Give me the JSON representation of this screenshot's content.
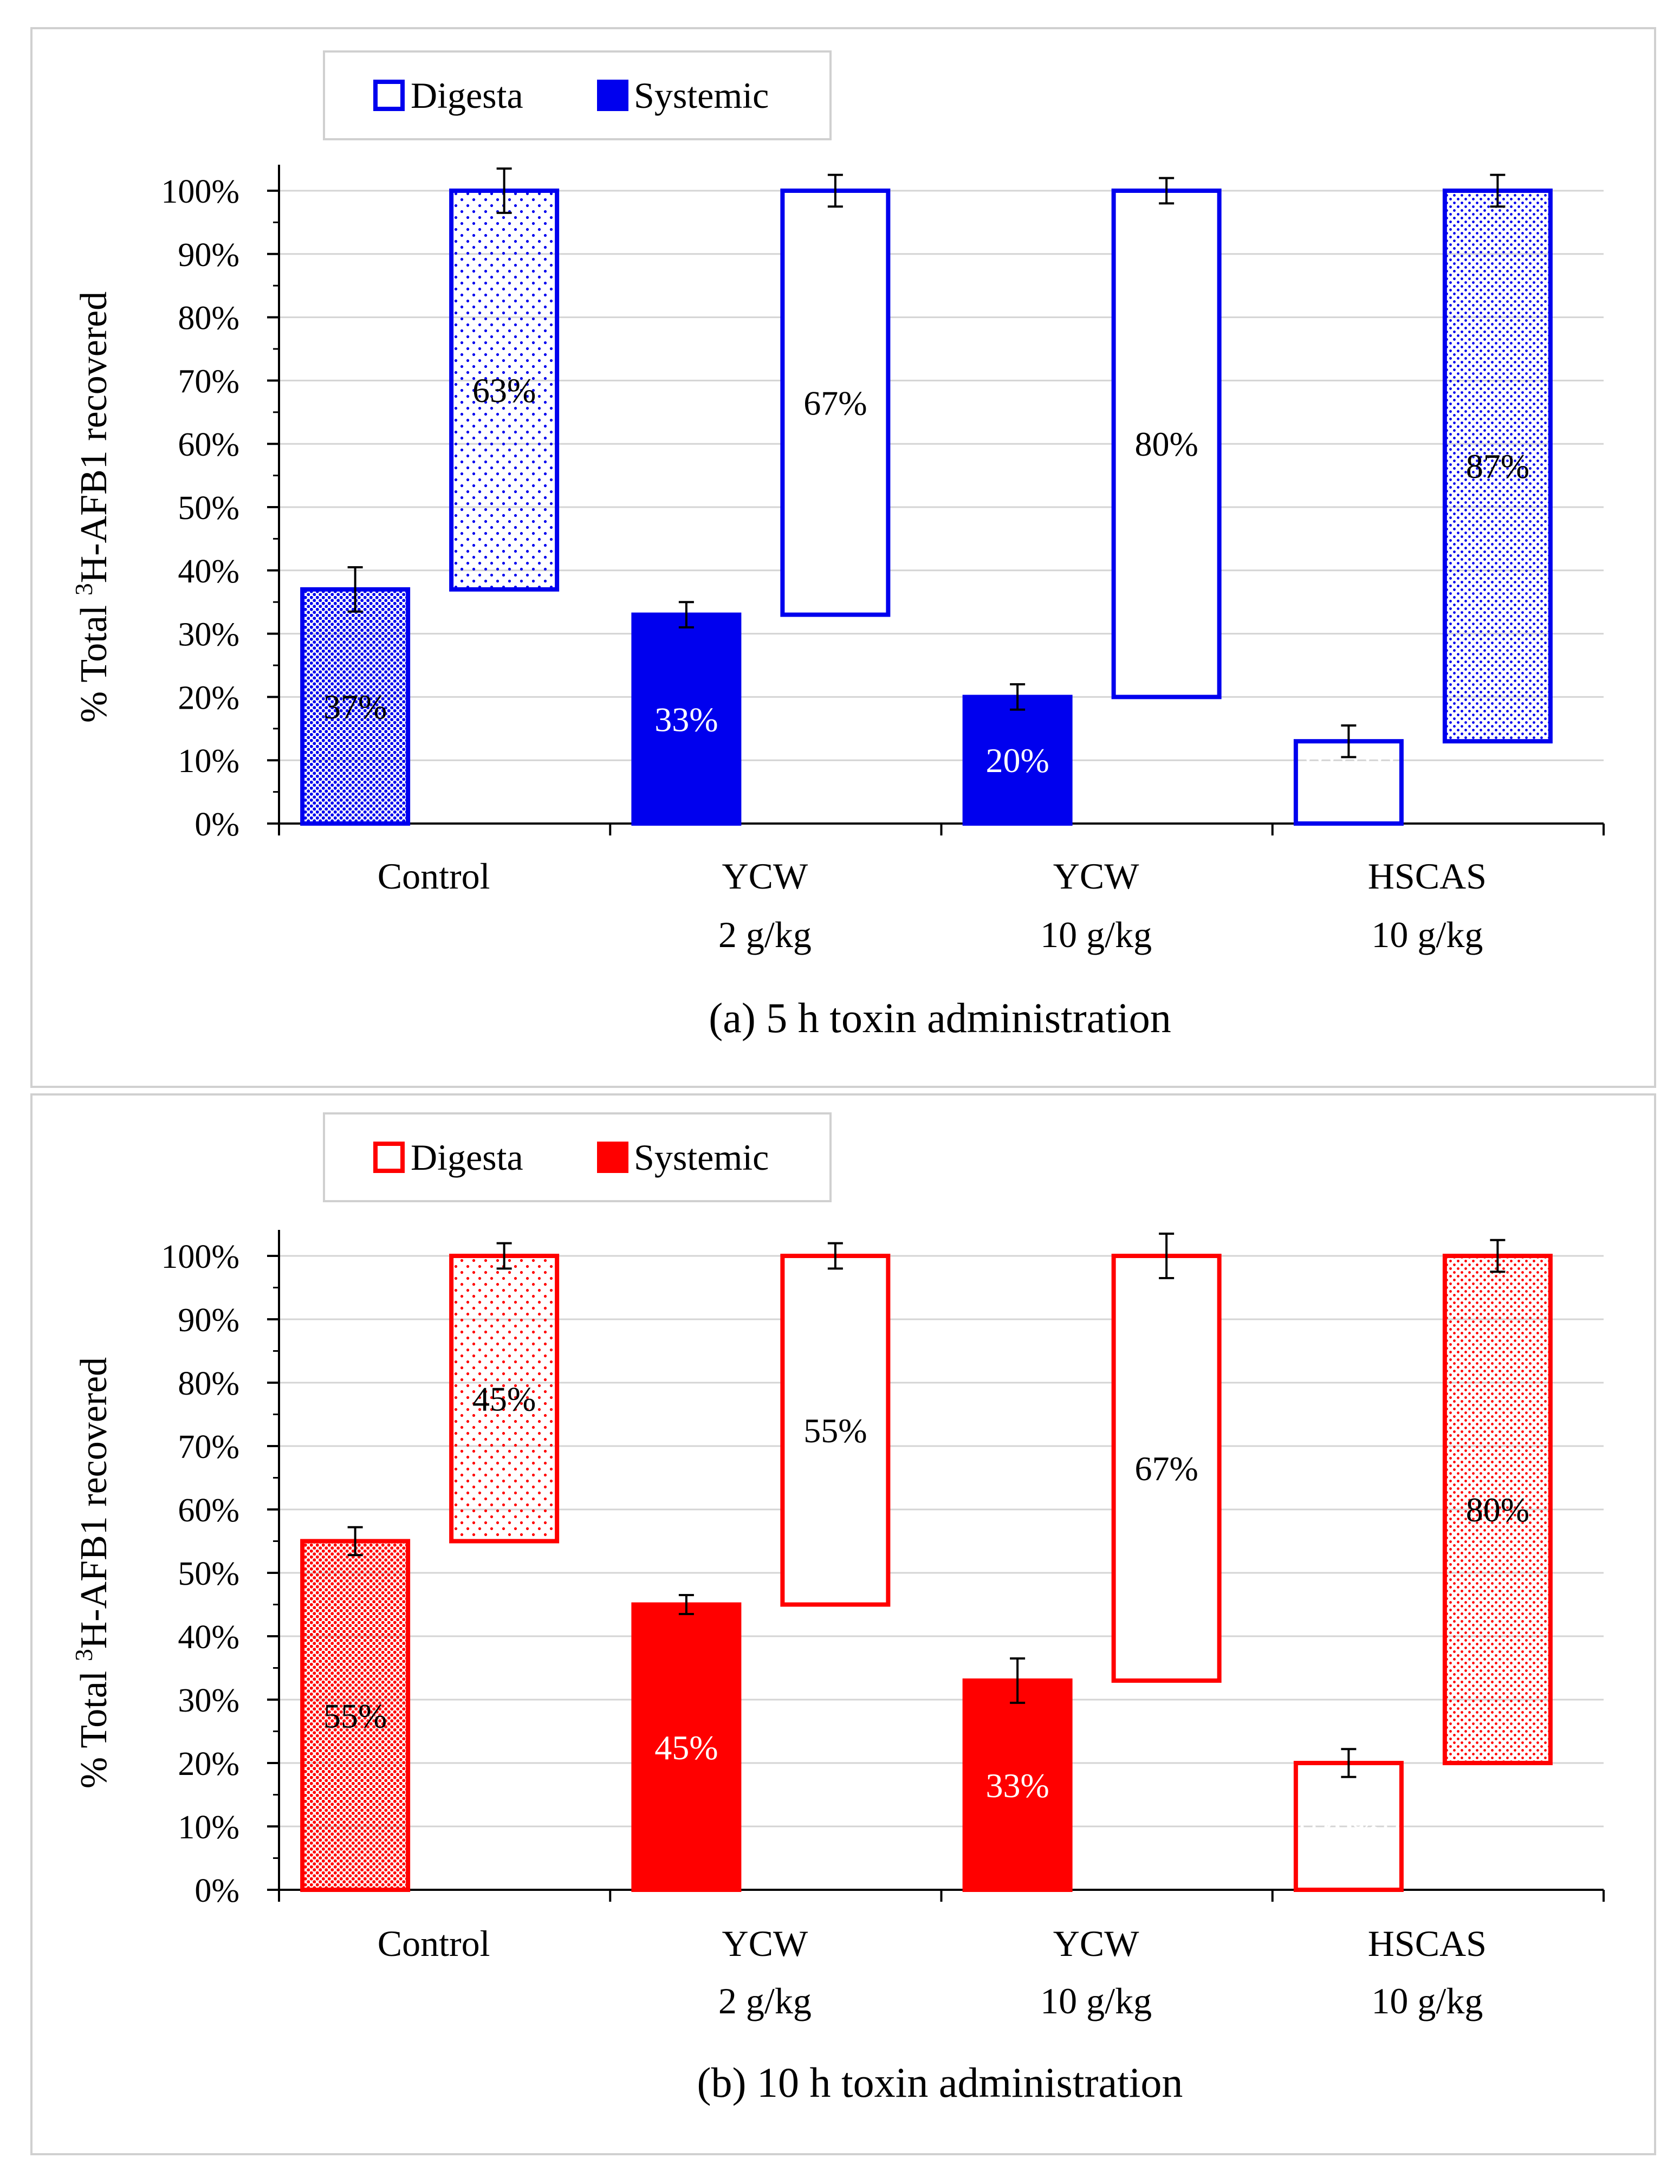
{
  "y_axis_label": {
    "prefix": "% Total ",
    "superscript": "3",
    "suffix": "H-AFB1 recovered"
  },
  "tick_format_suffix": "%",
  "chart_data": [
    {
      "type": "bar",
      "stacking": "floating-waterfall",
      "title": "(a) 5 h toxin administration",
      "categories": [
        [
          "Control"
        ],
        [
          "YCW",
          "2 g/kg"
        ],
        [
          "YCW",
          "10 g/kg"
        ],
        [
          "HSCAS",
          "10 g/kg"
        ]
      ],
      "ylim": [
        0,
        100
      ],
      "yticks": [
        0,
        10,
        20,
        30,
        40,
        50,
        60,
        70,
        80,
        90,
        100
      ],
      "grid": true,
      "legend_position": "top-left",
      "accent_color": "#0000ee",
      "series": [
        {
          "name": "Systemic",
          "role": "systemic",
          "values": [
            37,
            33,
            20,
            13
          ],
          "labels": [
            "37%",
            "33%",
            "20%",
            "13%"
          ],
          "error": [
            3.5,
            2,
            2,
            2.5
          ],
          "patterns": [
            "dense-dots",
            "solid",
            "solid",
            "solid-dots"
          ]
        },
        {
          "name": "Digesta",
          "role": "digesta",
          "values": [
            63,
            67,
            80,
            87
          ],
          "labels": [
            "63%",
            "67%",
            "80%",
            "87%"
          ],
          "error": [
            3.5,
            2.5,
            2,
            2.5
          ],
          "patterns": [
            "sparse-dots",
            "none",
            "none",
            "fine-dots"
          ]
        }
      ]
    },
    {
      "type": "bar",
      "stacking": "floating-waterfall",
      "title": "(b) 10 h toxin administration",
      "categories": [
        [
          "Control"
        ],
        [
          "YCW",
          "2 g/kg"
        ],
        [
          "YCW",
          "10 g/kg"
        ],
        [
          "HSCAS",
          "10 g/kg"
        ]
      ],
      "ylim": [
        0,
        100
      ],
      "yticks": [
        0,
        10,
        20,
        30,
        40,
        50,
        60,
        70,
        80,
        90,
        100
      ],
      "grid": true,
      "legend_position": "top-left",
      "accent_color": "#ff0000",
      "series": [
        {
          "name": "Systemic",
          "role": "systemic",
          "values": [
            55,
            45,
            33,
            20
          ],
          "labels": [
            "55%",
            "45%",
            "33%",
            "20%"
          ],
          "error": [
            2.2,
            1.5,
            3.5,
            2.2
          ],
          "patterns": [
            "dense-dots",
            "solid",
            "solid",
            "solid-dots"
          ]
        },
        {
          "name": "Digesta",
          "role": "digesta",
          "values": [
            45,
            55,
            67,
            80
          ],
          "labels": [
            "45%",
            "55%",
            "67%",
            "80%"
          ],
          "error": [
            2,
            2,
            3.5,
            2.5
          ],
          "patterns": [
            "sparse-dots",
            "none",
            "none",
            "fine-dots"
          ]
        }
      ]
    }
  ]
}
